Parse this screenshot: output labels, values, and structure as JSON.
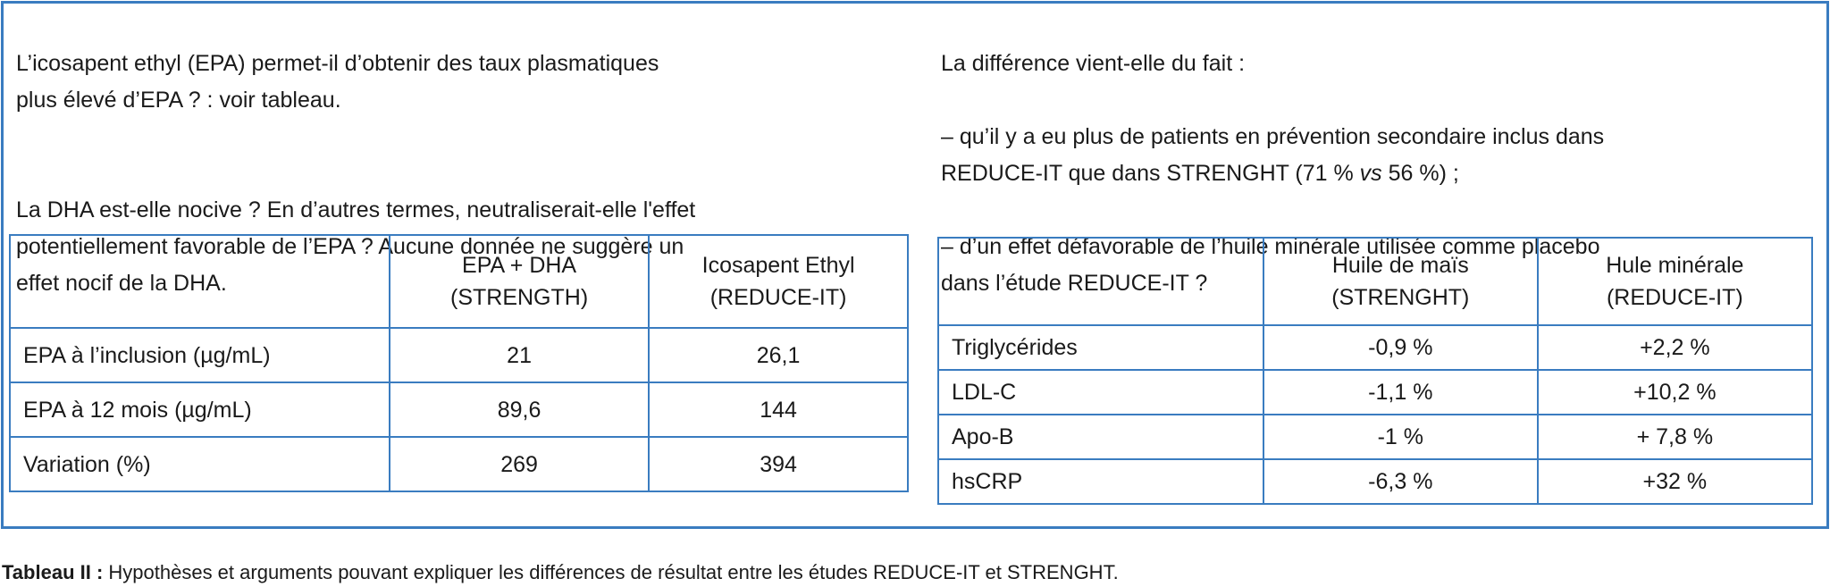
{
  "left": {
    "paragraphs": [
      "L’icosapent ethyl (EPA) permet-il d’obtenir des taux plasmatiques\nplus élevé d’EPA ? : voir tableau.",
      "La DHA est-elle nocive ? En d’autres termes, neutraliserait-elle l'effet\npotentiellement favorable de l’EPA ? Aucune donnée ne suggère un\neffet nocif de la DHA."
    ],
    "table": {
      "header": [
        "EPA + DHA\n(STRENGTH)",
        "Icosapent Ethyl\n(REDUCE-IT)"
      ],
      "rows": [
        [
          "EPA à l’inclusion (µg/mL)",
          "21",
          "26,1"
        ],
        [
          "EPA à 12 mois (µg/mL)",
          "89,6",
          "144"
        ],
        [
          "Variation (%)",
          "269",
          "394"
        ]
      ]
    }
  },
  "right": {
    "intro": "La différence vient-elle du fait :",
    "item1": [
      "– qu’il y a eu plus de patients en prévention secondaire inclus dans\nREDUCE-IT que dans STRENGHT (71 % ",
      "vs",
      " 56 %) ;"
    ],
    "item2": "– d’un effet défavorable de l’huile minérale utilisée comme placebo\ndans l’étude REDUCE-IT ?",
    "table": {
      "header": [
        "Huile de maïs\n(STRENGHT)",
        "Hule minérale\n(REDUCE-IT)"
      ],
      "rows": [
        [
          "Triglycérides",
          "-0,9 %",
          "+2,2 %"
        ],
        [
          "LDL-C",
          "-1,1 %",
          "+10,2 %"
        ],
        [
          "Apo-B",
          "-1 %",
          "+ 7,8 %"
        ],
        [
          "hsCRP",
          "-6,3 %",
          "+32 %"
        ]
      ]
    }
  },
  "caption": {
    "label": "Tableau II :",
    "text": " Hypothèses et arguments pouvant expliquer les différences de résultat entre les études REDUCE-IT et STRENGHT."
  }
}
